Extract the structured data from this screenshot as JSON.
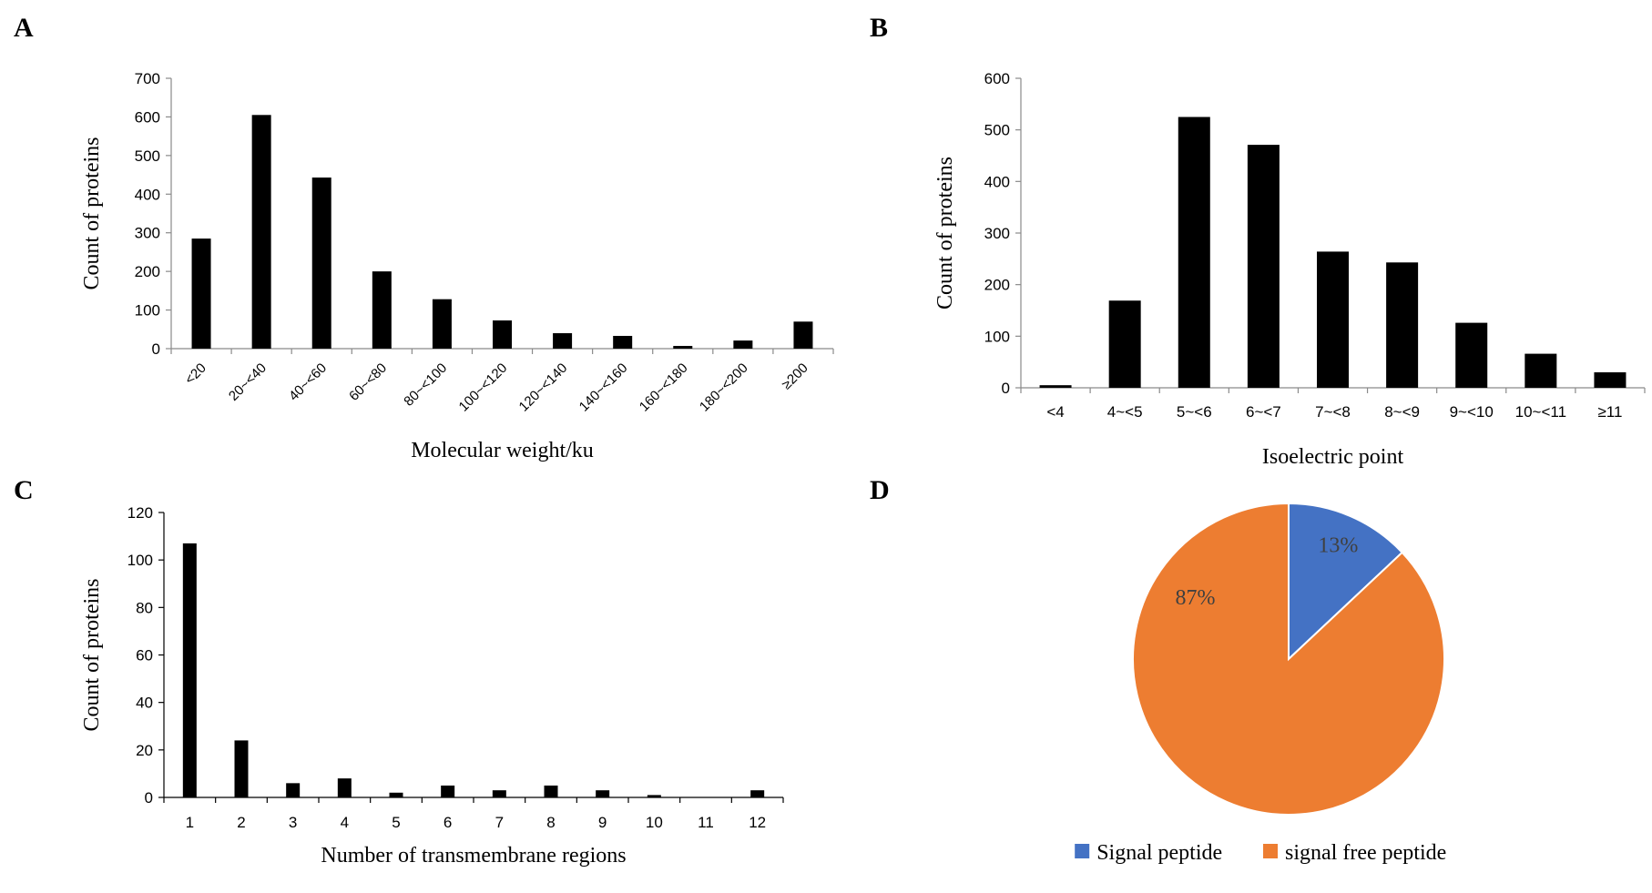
{
  "chart_data": [
    {
      "id": "A",
      "type": "bar",
      "panel_label": "A",
      "xlabel": "Molecular weight/ku",
      "ylabel": "Count of proteins",
      "ylim": [
        0,
        700
      ],
      "yticks": [
        0,
        100,
        200,
        300,
        400,
        500,
        600,
        700
      ],
      "categories": [
        "<20",
        "20~<40",
        "40~<60",
        "60~<80",
        "80~<100",
        "100~<120",
        "120~<140",
        "140~<160",
        "160~<180",
        "180~<200",
        "≥200"
      ],
      "values": [
        285,
        605,
        443,
        200,
        128,
        73,
        40,
        33,
        7,
        21,
        70
      ],
      "bar_color": "#000000",
      "grid": false
    },
    {
      "id": "B",
      "type": "bar",
      "panel_label": "B",
      "xlabel": "Isoelectric point",
      "ylabel": "Count of proteins",
      "ylim": [
        0,
        600
      ],
      "yticks": [
        0,
        100,
        200,
        300,
        400,
        500,
        600
      ],
      "categories": [
        "<4",
        "4~<5",
        "5~<6",
        "6~<7",
        "7~<8",
        "8~<9",
        "9~<10",
        "10~<11",
        "≥11"
      ],
      "values": [
        5,
        169,
        525,
        471,
        264,
        243,
        126,
        66,
        30
      ],
      "bar_color": "#000000",
      "grid": false
    },
    {
      "id": "C",
      "type": "bar",
      "panel_label": "C",
      "xlabel": "Number of transmembrane regions",
      "ylabel": "Count of proteins",
      "ylim": [
        0,
        120
      ],
      "yticks": [
        0,
        20,
        40,
        60,
        80,
        100,
        120
      ],
      "categories": [
        "1",
        "2",
        "3",
        "4",
        "5",
        "6",
        "7",
        "8",
        "9",
        "10",
        "11",
        "12"
      ],
      "values": [
        107,
        24,
        6,
        8,
        2,
        5,
        3,
        5,
        3,
        1,
        0,
        3
      ],
      "bar_color": "#000000",
      "grid": false
    },
    {
      "id": "D",
      "type": "pie",
      "panel_label": "D",
      "slices": [
        {
          "name": "Signal peptide",
          "value": 13,
          "label": "13%",
          "color": "#4472C4"
        },
        {
          "name": "signal free peptide",
          "value": 87,
          "label": "87%",
          "color": "#ED7D31"
        }
      ],
      "start_angle_deg": 0,
      "direction": "clockwise",
      "legend": "bottom"
    }
  ]
}
